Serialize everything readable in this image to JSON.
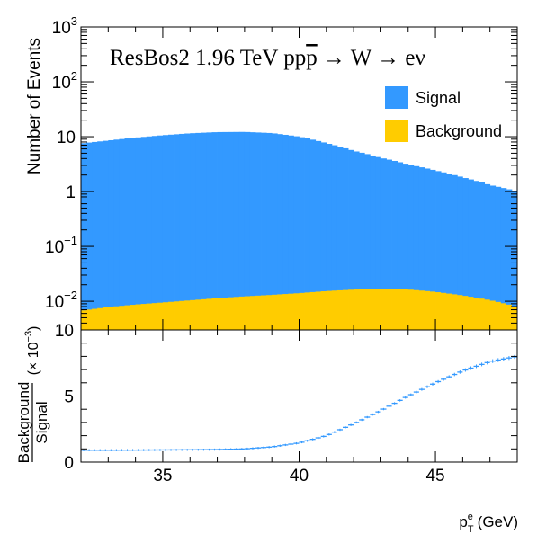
{
  "chart_data": [
    {
      "type": "bar",
      "subtype": "stacked-histogram",
      "annotation": {
        "generator": "ResBos2",
        "energy": "1.96 TeV",
        "process_initial": "pp",
        "process_initial_bar": "p",
        "arrow": "→",
        "boson": "W",
        "final_state": "eν"
      },
      "ylabel": "Number of Events",
      "yscale": "log",
      "ylim": [
        0.003,
        1000
      ],
      "xlim": [
        32,
        48
      ],
      "yticks": [
        {
          "value": 0.01,
          "base": "10",
          "exp": "−2"
        },
        {
          "value": 0.1,
          "base": "10",
          "exp": "−1"
        },
        {
          "value": 1,
          "base": "1",
          "exp": ""
        },
        {
          "value": 10,
          "base": "10",
          "exp": ""
        },
        {
          "value": 100,
          "base": "10",
          "exp": "2"
        },
        {
          "value": 1000,
          "base": "10",
          "exp": "3"
        }
      ],
      "legend_position": "top-right",
      "series": [
        {
          "name": "Signal",
          "color": "#3399ff",
          "x": [
            32,
            33,
            34,
            35,
            36,
            37,
            38,
            39,
            40,
            41,
            42,
            43,
            44,
            45,
            46,
            47,
            48
          ],
          "values": [
            7.5,
            8.5,
            9.6,
            10.6,
            11.5,
            12.1,
            12.2,
            11.6,
            10.0,
            7.6,
            5.5,
            4.1,
            3.1,
            2.4,
            1.8,
            1.3,
            1.0
          ]
        },
        {
          "name": "Background",
          "color": "#ffcc00",
          "x": [
            32,
            33,
            34,
            35,
            36,
            37,
            38,
            39,
            40,
            41,
            42,
            43,
            44,
            45,
            46,
            47,
            48
          ],
          "values": [
            0.0068,
            0.0079,
            0.0088,
            0.0096,
            0.0105,
            0.0115,
            0.0124,
            0.0132,
            0.0142,
            0.0155,
            0.0165,
            0.017,
            0.0166,
            0.015,
            0.0129,
            0.0106,
            0.008
          ]
        }
      ]
    },
    {
      "type": "scatter",
      "subtype": "ratio-with-errorbars",
      "ylabel_numerator": "Background",
      "ylabel_denominator": "Signal",
      "ylabel_scale": "(× 10",
      "ylabel_scale_exp": "−3",
      "ylabel_scale_close": ")",
      "xlabel_main": "p",
      "xlabel_sup": "e",
      "xlabel_sub": "T",
      "xlabel_unit": "(GeV)",
      "xlim": [
        32,
        48
      ],
      "ylim": [
        0,
        10
      ],
      "xticks": [
        35,
        40,
        45
      ],
      "yticks": [
        0,
        5,
        10
      ],
      "color": "#3399ff",
      "x": [
        32,
        33,
        34,
        35,
        36,
        37,
        38,
        39,
        40,
        41,
        42,
        43,
        44,
        45,
        46,
        47,
        48
      ],
      "values": [
        0.9,
        0.9,
        0.91,
        0.92,
        0.93,
        0.95,
        1.0,
        1.15,
        1.45,
        2.0,
        2.9,
        3.9,
        5.0,
        6.0,
        6.9,
        7.6,
        8.0
      ]
    }
  ]
}
